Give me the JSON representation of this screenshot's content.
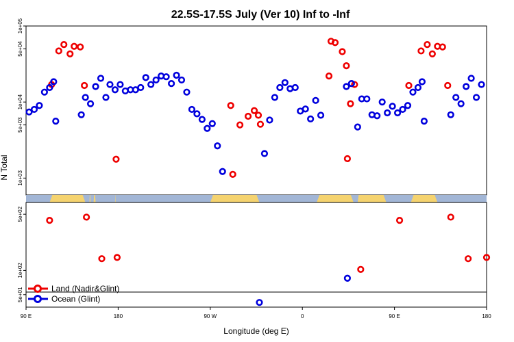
{
  "chart_data": {
    "type": "scatter",
    "title": "22.5S-17.5S July (Ver 10)   Inf to -Inf",
    "xlabel": "Longitude (deg E)",
    "ylabel": "N Total",
    "x_ticks": [
      {
        "value": 90,
        "label": "90 E"
      },
      {
        "value": 180,
        "label": "180"
      },
      {
        "value": 270,
        "label": "90 W"
      },
      {
        "value": 360,
        "label": "0"
      },
      {
        "value": 450,
        "label": "90 E"
      },
      {
        "value": 540,
        "label": "180"
      }
    ],
    "xlim": [
      90,
      540
    ],
    "upper_panel": {
      "y_scale": "log",
      "ylim": [
        600,
        100000
      ],
      "y_ticks": [
        {
          "value": 1000,
          "label": "1e+03"
        },
        {
          "value": 5000,
          "label": "5e+03"
        },
        {
          "value": 10000,
          "label": "1e+04"
        },
        {
          "value": 50000,
          "label": "5e+04"
        },
        {
          "value": 100000,
          "label": "1e+05"
        }
      ]
    },
    "lower_panel": {
      "y_scale": "log",
      "ylim": [
        35,
        700
      ],
      "y_ticks": [
        {
          "value": 50,
          "label": "5e+01"
        },
        {
          "value": 100,
          "label": "1e+02"
        },
        {
          "value": 500,
          "label": "5e+02"
        }
      ]
    },
    "land_mask": [
      [
        113,
        148
      ],
      [
        152,
        153
      ],
      [
        156,
        158
      ],
      [
        177,
        177.5
      ],
      [
        270,
        318
      ],
      [
        374,
        410
      ],
      [
        404,
        408
      ],
      [
        414,
        418
      ],
      [
        414,
        442
      ],
      [
        466,
        492
      ]
    ],
    "legend_position": "bottom-left",
    "series": [
      {
        "name": "Land (Nadir&Glint)",
        "color": "#ee0000",
        "points": [
          [
            115,
            17000
          ],
          [
            122,
            47000
          ],
          [
            127,
            57000
          ],
          [
            133,
            43000
          ],
          [
            137,
            54000
          ],
          [
            143,
            53000
          ],
          [
            147,
            16500
          ],
          [
            178,
            1770
          ],
          [
            290,
            9000
          ],
          [
            292,
            1120
          ],
          [
            299,
            5000
          ],
          [
            307,
            6500
          ],
          [
            313,
            7700
          ],
          [
            317,
            6700
          ],
          [
            319,
            5100
          ],
          [
            386,
            22000
          ],
          [
            388,
            63000
          ],
          [
            392,
            60500
          ],
          [
            399,
            46000
          ],
          [
            403,
            30000
          ],
          [
            404,
            1800
          ],
          [
            407,
            9500
          ],
          [
            411,
            17000
          ],
          [
            464,
            16500
          ],
          [
            476,
            47000
          ],
          [
            482,
            57000
          ],
          [
            487,
            43000
          ],
          [
            492,
            54000
          ],
          [
            497,
            53000
          ],
          [
            502,
            16500
          ],
          [
            113,
            420
          ],
          [
            149,
            460
          ],
          [
            164,
            140
          ],
          [
            179,
            145
          ],
          [
            455,
            420
          ],
          [
            505,
            460
          ],
          [
            522,
            140
          ],
          [
            540,
            145
          ],
          [
            417,
            103
          ]
        ]
      },
      {
        "name": "Ocean (Glint)",
        "color": "#0000dd",
        "points": [
          [
            93,
            7400
          ],
          [
            98,
            8000
          ],
          [
            103,
            9000
          ],
          [
            108,
            13500
          ],
          [
            113,
            15500
          ],
          [
            117,
            18500
          ],
          [
            119,
            5600
          ],
          [
            144,
            6800
          ],
          [
            148,
            11500
          ],
          [
            153,
            9500
          ],
          [
            158,
            16000
          ],
          [
            163,
            20500
          ],
          [
            168,
            11500
          ],
          [
            172,
            17000
          ],
          [
            177,
            14500
          ],
          [
            182,
            17000
          ],
          [
            187,
            14000
          ],
          [
            192,
            14500
          ],
          [
            197,
            14500
          ],
          [
            202,
            15500
          ],
          [
            207,
            21000
          ],
          [
            212,
            17000
          ],
          [
            217,
            19500
          ],
          [
            222,
            22000
          ],
          [
            227,
            21500
          ],
          [
            232,
            17500
          ],
          [
            237,
            22500
          ],
          [
            242,
            19500
          ],
          [
            247,
            13500
          ],
          [
            252,
            8000
          ],
          [
            257,
            7000
          ],
          [
            262,
            5900
          ],
          [
            267,
            4500
          ],
          [
            272,
            5200
          ],
          [
            277,
            2650
          ],
          [
            282,
            1220
          ],
          [
            323,
            2100
          ],
          [
            328,
            5800
          ],
          [
            333,
            11500
          ],
          [
            338,
            15500
          ],
          [
            343,
            18000
          ],
          [
            348,
            15000
          ],
          [
            353,
            15500
          ],
          [
            358,
            7600
          ],
          [
            363,
            8100
          ],
          [
            368,
            6000
          ],
          [
            373,
            10500
          ],
          [
            378,
            6700
          ],
          [
            403,
            16000
          ],
          [
            408,
            17500
          ],
          [
            414,
            4700
          ],
          [
            418,
            11000
          ],
          [
            423,
            11000
          ],
          [
            428,
            6800
          ],
          [
            433,
            6600
          ],
          [
            438,
            10000
          ],
          [
            443,
            7200
          ],
          [
            448,
            8800
          ],
          [
            453,
            7200
          ],
          [
            458,
            8000
          ],
          [
            463,
            9000
          ],
          [
            468,
            13500
          ],
          [
            473,
            15500
          ],
          [
            477,
            18500
          ],
          [
            479,
            5600
          ],
          [
            505,
            6800
          ],
          [
            510,
            11500
          ],
          [
            515,
            9500
          ],
          [
            520,
            16000
          ],
          [
            525,
            20500
          ],
          [
            530,
            11500
          ],
          [
            535,
            17000
          ],
          [
            318,
            40
          ],
          [
            404,
            80
          ]
        ]
      }
    ]
  }
}
